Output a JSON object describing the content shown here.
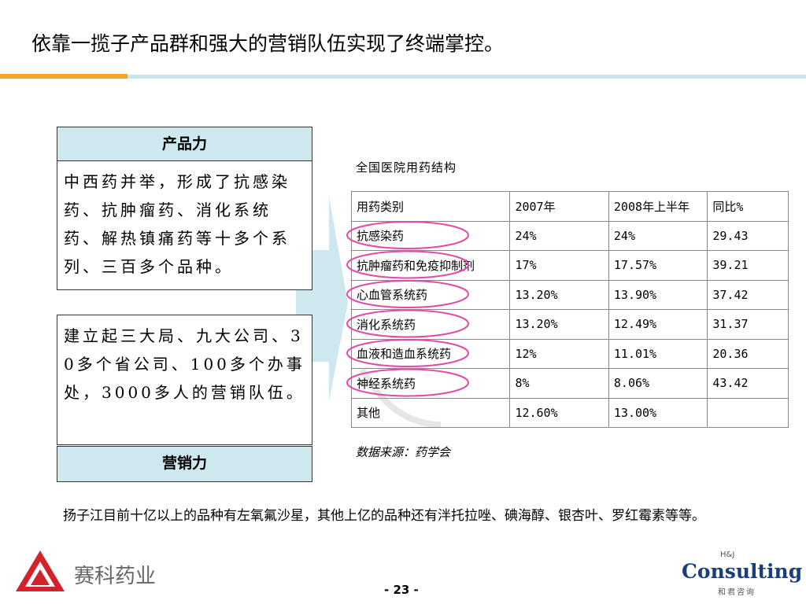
{
  "header": {
    "title": "依靠一揽子产品群和强大的营销队伍实现了终端掌控。"
  },
  "product_box": {
    "heading": "产品力",
    "text": "中西药并举，形成了抗感染药、抗肿瘤药、消化系统药、解热镇痛药等十多个系列、三百多个品种。"
  },
  "marketing_box": {
    "text": "建立起三大局、九大公司、30多个省公司、100多个办事处，3000多人的营销队伍。",
    "heading": "营销力"
  },
  "table": {
    "title": "全国医院用药结构",
    "header": [
      "用药类别",
      "2007年",
      "2008年上半年",
      "同比%"
    ],
    "rows": [
      [
        "抗感染药",
        "24%",
        "24%",
        "29.43"
      ],
      [
        "抗肿瘤药和免疫抑制剂",
        "17%",
        "17.57%",
        "39.21"
      ],
      [
        "心血管系统药",
        "13.20%",
        "13.90%",
        "37.42"
      ],
      [
        "消化系统药",
        "13.20%",
        "12.49%",
        "31.37"
      ],
      [
        "血液和造血系统药",
        "12%",
        "11.01%",
        "20.36"
      ],
      [
        "神经系统药",
        "8%",
        "8.06%",
        "43.42"
      ],
      [
        "其他",
        "12.60%",
        "13.00%",
        null
      ]
    ],
    "source": "数据来源：药学会"
  },
  "note": "扬子江目前十亿以上的品种有左氧氟沙星，其他上亿的品种还有泮托拉唑、碘海醇、银杏叶、罗红霉素等等。",
  "footer": {
    "company": "赛科药业",
    "page": "- 23 -",
    "logo_small": "H&J",
    "logo_main": "Consulting",
    "logo_sub": "和君咨询"
  }
}
